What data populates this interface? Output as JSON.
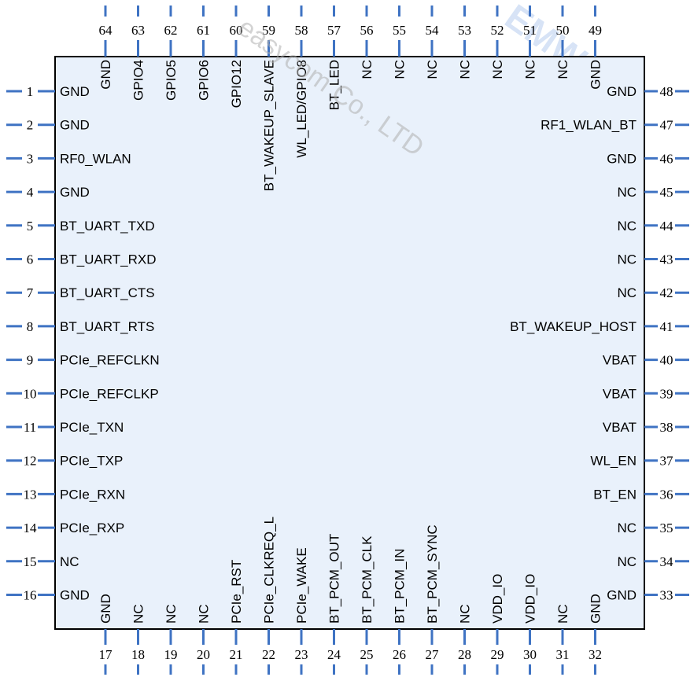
{
  "watermark": {
    "text": "easycom Co., LTD",
    "logo": "EMW"
  },
  "colors": {
    "body_fill": "#e9f1fb",
    "body_stroke": "#000000",
    "lead": "#3f73c3",
    "text": "#000000"
  },
  "left_pins": [
    {
      "num": "1",
      "label": "GND"
    },
    {
      "num": "2",
      "label": "GND"
    },
    {
      "num": "3",
      "label": "RF0_WLAN"
    },
    {
      "num": "4",
      "label": "GND"
    },
    {
      "num": "5",
      "label": "BT_UART_TXD"
    },
    {
      "num": "6",
      "label": "BT_UART_RXD"
    },
    {
      "num": "7",
      "label": "BT_UART_CTS"
    },
    {
      "num": "8",
      "label": "BT_UART_RTS"
    },
    {
      "num": "9",
      "label": "PCIe_REFCLKN"
    },
    {
      "num": "10",
      "label": "PCIe_REFCLKP"
    },
    {
      "num": "11",
      "label": "PCIe_TXN"
    },
    {
      "num": "12",
      "label": "PCIe_TXP"
    },
    {
      "num": "13",
      "label": "PCIe_RXN"
    },
    {
      "num": "14",
      "label": "PCIe_RXP"
    },
    {
      "num": "15",
      "label": "NC"
    },
    {
      "num": "16",
      "label": "GND"
    }
  ],
  "right_pins": [
    {
      "num": "48",
      "label": "GND"
    },
    {
      "num": "47",
      "label": "RF1_WLAN_BT"
    },
    {
      "num": "46",
      "label": "GND"
    },
    {
      "num": "45",
      "label": "NC"
    },
    {
      "num": "44",
      "label": "NC"
    },
    {
      "num": "43",
      "label": "NC"
    },
    {
      "num": "42",
      "label": "NC"
    },
    {
      "num": "41",
      "label": "BT_WAKEUP_HOST"
    },
    {
      "num": "40",
      "label": "VBAT"
    },
    {
      "num": "39",
      "label": "VBAT"
    },
    {
      "num": "38",
      "label": "VBAT"
    },
    {
      "num": "37",
      "label": "WL_EN"
    },
    {
      "num": "36",
      "label": "BT_EN"
    },
    {
      "num": "35",
      "label": "NC"
    },
    {
      "num": "34",
      "label": "NC"
    },
    {
      "num": "33",
      "label": "GND"
    }
  ],
  "top_pins": [
    {
      "num": "64",
      "label": "GND"
    },
    {
      "num": "63",
      "label": "GPIO4"
    },
    {
      "num": "62",
      "label": "GPIO5"
    },
    {
      "num": "61",
      "label": "GPIO6"
    },
    {
      "num": "60",
      "label": "GPIO12"
    },
    {
      "num": "59",
      "label": "BT_WAKEUP_SLAVE"
    },
    {
      "num": "58",
      "label": "WL_LED/GPIO8"
    },
    {
      "num": "57",
      "label": "BT_LED"
    },
    {
      "num": "56",
      "label": "NC"
    },
    {
      "num": "55",
      "label": "NC"
    },
    {
      "num": "54",
      "label": "NC"
    },
    {
      "num": "53",
      "label": "NC"
    },
    {
      "num": "52",
      "label": "NC"
    },
    {
      "num": "51",
      "label": "NC"
    },
    {
      "num": "50",
      "label": "NC"
    },
    {
      "num": "49",
      "label": "GND"
    }
  ],
  "bottom_pins": [
    {
      "num": "17",
      "label": "GND"
    },
    {
      "num": "18",
      "label": "NC"
    },
    {
      "num": "19",
      "label": "NC"
    },
    {
      "num": "20",
      "label": "NC"
    },
    {
      "num": "21",
      "label": "PCIe_RST"
    },
    {
      "num": "22",
      "label": "PCIe_CLKREQ_L"
    },
    {
      "num": "23",
      "label": "PCIe_WAKE"
    },
    {
      "num": "24",
      "label": "BT_PCM_OUT"
    },
    {
      "num": "25",
      "label": "BT_PCM_CLK"
    },
    {
      "num": "26",
      "label": "BT_PCM_IN"
    },
    {
      "num": "27",
      "label": "BT_PCM_SYNC"
    },
    {
      "num": "28",
      "label": "NC"
    },
    {
      "num": "29",
      "label": "VDD_IO"
    },
    {
      "num": "30",
      "label": "VDD_IO"
    },
    {
      "num": "31",
      "label": "NC"
    },
    {
      "num": "32",
      "label": "GND"
    }
  ]
}
